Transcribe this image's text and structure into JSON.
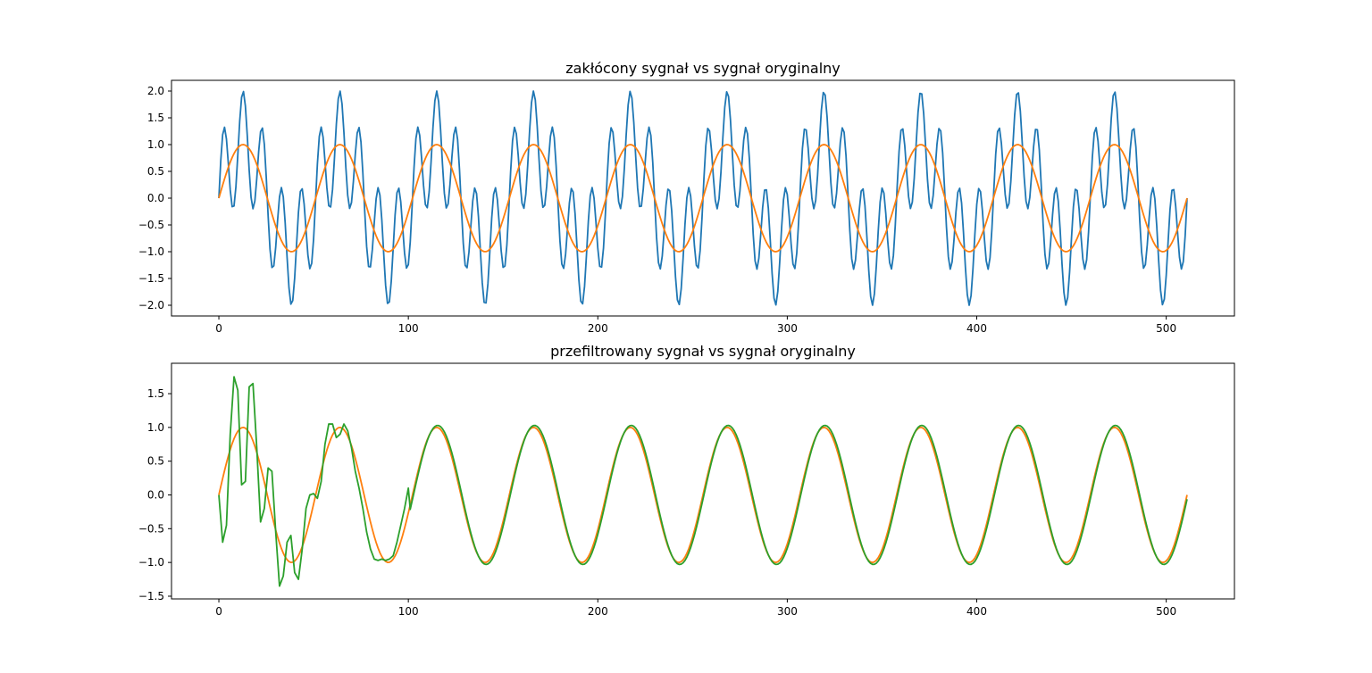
{
  "chart_data": [
    {
      "type": "line",
      "title": "zakłócony sygnał vs sygnał oryginalny",
      "xlabel": "",
      "ylabel": "",
      "xlim": [
        -25,
        536
      ],
      "ylim": [
        -2.2,
        2.2
      ],
      "xticks": [
        0,
        100,
        200,
        300,
        400,
        500
      ],
      "yticks": [
        -2.0,
        -1.5,
        -1.0,
        -0.5,
        0.0,
        0.5,
        1.0,
        1.5,
        2.0
      ],
      "xtick_labels": [
        "0",
        "100",
        "200",
        "300",
        "400",
        "500"
      ],
      "ytick_labels": [
        "−2.0",
        "−1.5",
        "−1.0",
        "−0.5",
        "0.0",
        "0.5",
        "1.0",
        "1.5",
        "2.0"
      ],
      "grid": false,
      "series": [
        {
          "color": "#1f77b4",
          "formula": "sin(2*pi*10*n/511) + sin(2*pi*50*n/511), n = 0..511",
          "x_range": [
            0,
            511
          ]
        },
        {
          "color": "#ff7f0e",
          "formula": "sin(2*pi*10*n/511), n = 0..511",
          "x_range": [
            0,
            511
          ]
        }
      ]
    },
    {
      "type": "line",
      "title": "przefiltrowany sygnał vs sygnał oryginalny",
      "xlabel": "",
      "ylabel": "",
      "xlim": [
        -25,
        536
      ],
      "ylim": [
        -1.54,
        1.95
      ],
      "xticks": [
        0,
        100,
        200,
        300,
        400,
        500
      ],
      "yticks": [
        -1.5,
        -1.0,
        -0.5,
        0.0,
        0.5,
        1.0,
        1.5
      ],
      "xtick_labels": [
        "0",
        "100",
        "200",
        "300",
        "400",
        "500"
      ],
      "ytick_labels": [
        "−1.5",
        "−1.0",
        "−0.5",
        "0.0",
        "0.5",
        "1.0",
        "1.5"
      ],
      "grid": false,
      "series": [
        {
          "color": "#ff7f0e",
          "formula": "sin(2*pi*10*n/511), n = 0..511",
          "x_range": [
            0,
            511
          ]
        },
        {
          "color": "#2ca02c",
          "x": [
            0,
            2,
            4,
            6,
            8,
            10,
            12,
            14,
            16,
            18,
            20,
            22,
            24,
            26,
            28,
            30,
            32,
            34,
            36,
            38,
            40,
            42,
            44,
            46,
            48,
            50,
            52,
            54,
            56,
            58,
            60,
            62,
            64,
            66,
            68,
            70,
            72,
            74,
            76,
            78,
            80,
            82,
            84,
            86,
            88,
            90,
            92,
            94,
            96,
            98,
            100
          ],
          "y": [
            0.0,
            -0.7,
            -0.45,
            0.9,
            1.75,
            1.55,
            0.15,
            0.2,
            1.6,
            1.65,
            0.7,
            -0.4,
            -0.2,
            0.4,
            0.35,
            -0.55,
            -1.35,
            -1.2,
            -0.7,
            -0.6,
            -1.15,
            -1.25,
            -0.8,
            -0.2,
            0.0,
            0.02,
            -0.05,
            0.2,
            0.75,
            1.05,
            1.05,
            0.85,
            0.9,
            1.05,
            0.95,
            0.7,
            0.35,
            0.1,
            -0.2,
            -0.55,
            -0.8,
            -0.95,
            -0.97,
            -0.95,
            -0.97,
            -0.95,
            -0.9,
            -0.7,
            -0.45,
            -0.2,
            0.1
          ],
          "then_formula": "1.03*sin(2*pi*10*(n-0.5)/511) for n = 100..511"
        }
      ]
    }
  ]
}
